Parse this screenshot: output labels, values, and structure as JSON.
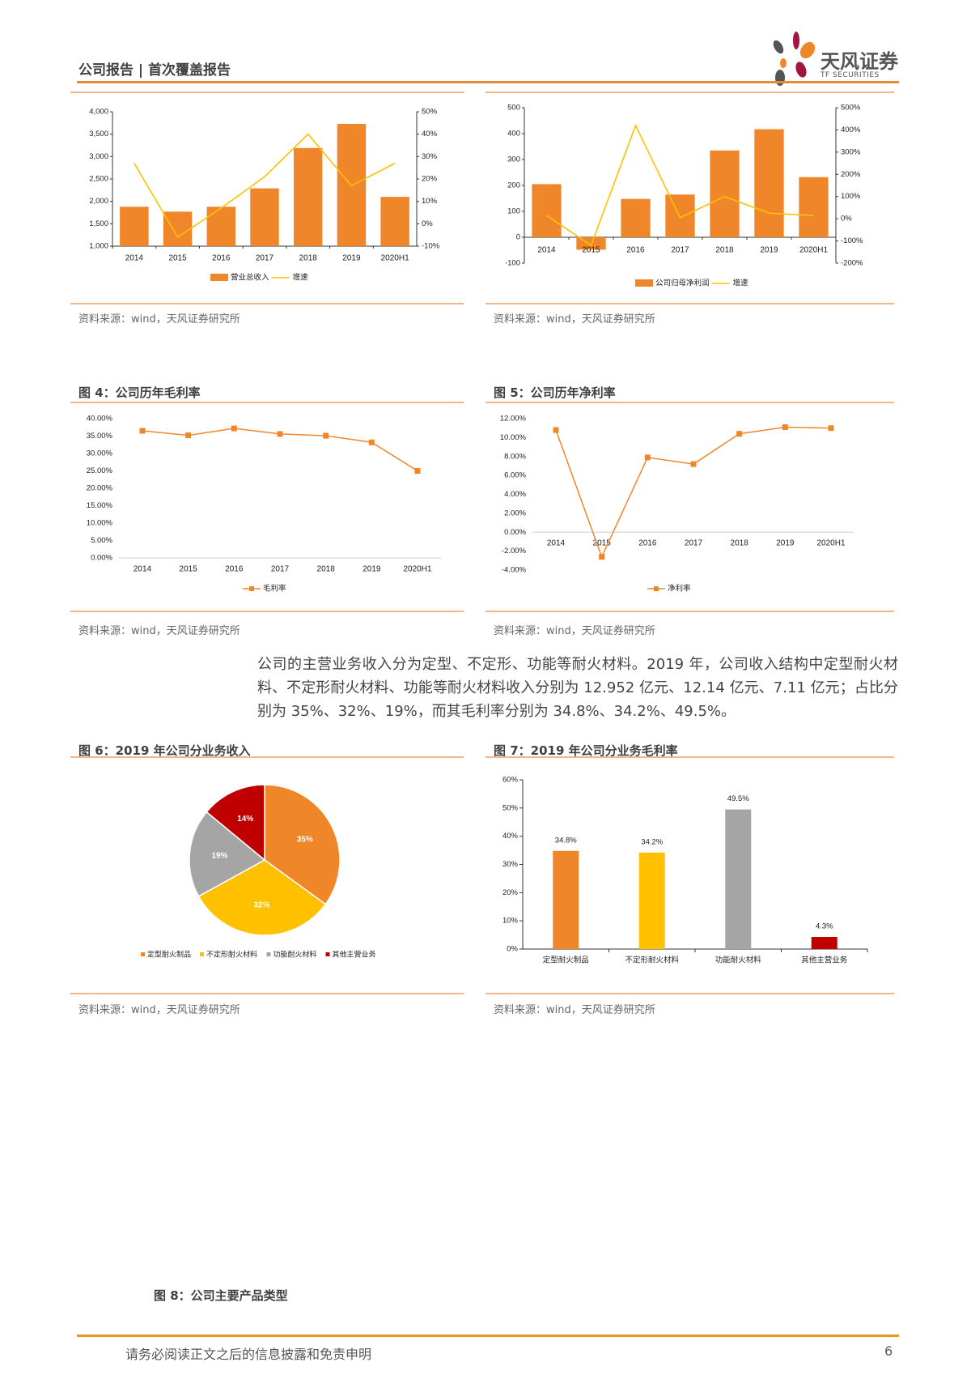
{
  "header": {
    "title": "公司报告 | 首次覆盖报告",
    "logo_text": "天风证券",
    "logo_sub": "TF SECURITIES"
  },
  "colors": {
    "orange": "#F0862A",
    "yellow": "#FFC000",
    "gray": "#A5A5A5",
    "red": "#C00000",
    "rule": "#E98A3A"
  },
  "source_text": "资料来源：wind，天风证券研究所",
  "figures": {
    "fig4_title": "图 4：公司历年毛利率",
    "fig5_title": "图 5：公司历年净利率",
    "fig6_title": "图 6：2019 年公司分业务收入",
    "fig7_title": "图 7：2019 年公司分业务毛利率",
    "fig8_title": "图 8：公司主要产品类型"
  },
  "paragraph": "公司的主营业务收入分为定型、不定形、功能等耐火材料。2019 年，公司收入结构中定型耐火材料、不定形耐火材料、功能等耐火材料收入分别为 12.952 亿元、12.14 亿元、7.11 亿元；占比分别为 35%、32%、19%，而其毛利率分别为 34.8%、34.2%、49.5%。",
  "footer": {
    "disclaimer": "请务必阅读正文之后的信息披露和免责申明",
    "page": "6"
  },
  "chart_data": [
    {
      "id": "revenue",
      "type": "bar",
      "categories": [
        "2014",
        "2015",
        "2016",
        "2017",
        "2018",
        "2019",
        "2020H1"
      ],
      "series": [
        {
          "name": "营业总收入",
          "type": "bar",
          "axis": "left",
          "values": [
            1880,
            1770,
            1880,
            2290,
            3190,
            3730,
            2100
          ]
        },
        {
          "name": "增速",
          "type": "line",
          "axis": "right",
          "values": [
            27,
            -6,
            7,
            21,
            40,
            17,
            27
          ]
        }
      ],
      "ylim": [
        1000,
        4000
      ],
      "yticks": [
        "1,000",
        "1,500",
        "2,000",
        "2,500",
        "3,000",
        "3,500",
        "4,000"
      ],
      "y2lim": [
        -10,
        50
      ],
      "y2ticks": [
        "-10%",
        "0%",
        "10%",
        "20%",
        "30%",
        "40%",
        "50%"
      ],
      "legend": "bottom"
    },
    {
      "id": "net_profit",
      "type": "bar",
      "categories": [
        "2014",
        "2015",
        "2016",
        "2017",
        "2018",
        "2019",
        "2020H1"
      ],
      "series": [
        {
          "name": "公司归母净利润",
          "type": "bar",
          "axis": "left",
          "values": [
            205,
            -48,
            148,
            165,
            335,
            417,
            232
          ]
        },
        {
          "name": "增速",
          "type": "line",
          "axis": "right",
          "values": [
            15,
            -120,
            420,
            5,
            100,
            25,
            15
          ]
        }
      ],
      "ylim": [
        -100,
        500
      ],
      "yticks": [
        "-100",
        "0",
        "100",
        "200",
        "300",
        "400",
        "500"
      ],
      "y2lim": [
        -200,
        500
      ],
      "y2ticks": [
        "-200%",
        "-100%",
        "0%",
        "100%",
        "200%",
        "300%",
        "400%",
        "500%"
      ],
      "legend": "bottom"
    },
    {
      "id": "gross_margin",
      "type": "line",
      "categories": [
        "2014",
        "2015",
        "2016",
        "2017",
        "2018",
        "2019",
        "2020H1"
      ],
      "series": [
        {
          "name": "毛利率",
          "values": [
            36.5,
            35.2,
            37.2,
            35.6,
            35.1,
            33.2,
            25.0
          ]
        }
      ],
      "ylim": [
        0,
        40
      ],
      "yticks": [
        "0.00%",
        "5.00%",
        "10.00%",
        "15.00%",
        "20.00%",
        "25.00%",
        "30.00%",
        "35.00%",
        "40.00%"
      ],
      "legend": "bottom"
    },
    {
      "id": "net_margin",
      "type": "line",
      "categories": [
        "2014",
        "2015",
        "2016",
        "2017",
        "2018",
        "2019",
        "2020H1"
      ],
      "series": [
        {
          "name": "净利率",
          "values": [
            10.8,
            -2.6,
            7.9,
            7.2,
            10.4,
            11.1,
            11.0
          ]
        }
      ],
      "ylim": [
        -4,
        12
      ],
      "yticks": [
        "-4.00%",
        "-2.00%",
        "0.00%",
        "2.00%",
        "4.00%",
        "6.00%",
        "8.00%",
        "10.00%",
        "12.00%"
      ],
      "legend": "bottom"
    },
    {
      "id": "segment_revenue",
      "type": "pie",
      "labels": [
        "定型耐火制品",
        "不定形耐火材料",
        "功能耐火材料",
        "其他主营业务"
      ],
      "values": [
        35,
        32,
        19,
        14
      ],
      "value_labels": [
        "35%",
        "32%",
        "19%",
        "14%"
      ],
      "legend": "bottom"
    },
    {
      "id": "segment_margin",
      "type": "bar",
      "categories": [
        "定型耐火制品",
        "不定形耐火材料",
        "功能耐火材料",
        "其他主营业务"
      ],
      "values": [
        34.8,
        34.2,
        49.5,
        4.3
      ],
      "value_labels": [
        "34.8%",
        "34.2%",
        "49.5%",
        "4.3%"
      ],
      "ylim": [
        0,
        60
      ],
      "yticks": [
        "0%",
        "10%",
        "20%",
        "30%",
        "40%",
        "50%",
        "60%"
      ]
    }
  ]
}
